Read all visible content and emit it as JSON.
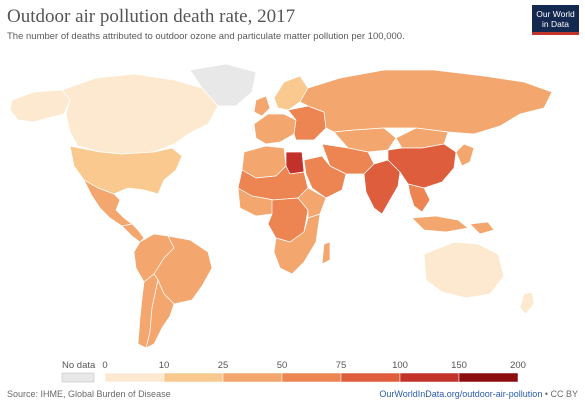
{
  "header": {
    "title": "Outdoor air pollution death rate, 2017",
    "subtitle": "The number of deaths attributed to outdoor ozone and particulate matter pollution per 100,000."
  },
  "logo": {
    "line1": "Our World",
    "line2": "in Data",
    "bg_color": "#14294f",
    "accent_color": "#c0342c"
  },
  "legend": {
    "no_data_label": "No data",
    "no_data_color": "#e8e8e8",
    "ticks": [
      "0",
      "10",
      "25",
      "50",
      "75",
      "100",
      "150",
      "200"
    ],
    "bins": [
      {
        "from": 0,
        "to": 10,
        "color": "#fde9cf"
      },
      {
        "from": 10,
        "to": 25,
        "color": "#f9c98f"
      },
      {
        "from": 25,
        "to": 50,
        "color": "#f3a66d"
      },
      {
        "from": 50,
        "to": 75,
        "color": "#ec8552"
      },
      {
        "from": 75,
        "to": 100,
        "color": "#de5d3c"
      },
      {
        "from": 100,
        "to": 150,
        "color": "#c3322a"
      },
      {
        "from": 150,
        "to": 200,
        "color": "#8c0d0d"
      }
    ]
  },
  "map": {
    "ocean_color": "#ffffff",
    "border_color": "#ffffff",
    "region_values": {
      "canada": 7,
      "alaska": 7,
      "usa": 20,
      "greenland": null,
      "mexico": 27,
      "central_america": 28,
      "brazil": 32,
      "andes_north": 35,
      "south_cone": 28,
      "argentina": 30,
      "uk_ireland": 27,
      "scandinavia": 15,
      "western_europe": 30,
      "eastern_europe": 60,
      "russia": 45,
      "north_africa_west": 45,
      "egypt": 130,
      "sahel": 55,
      "west_africa": 45,
      "central_africa": 60,
      "horn_africa": 30,
      "southern_africa": 38,
      "madagascar": 25,
      "arabia": 70,
      "iran_central_asia": 65,
      "kazakhstan": 45,
      "india": 85,
      "china": 75,
      "mongolia": 35,
      "southeast_asia": 55,
      "indonesia": 40,
      "japan_korea": 45,
      "australia": 8,
      "new_zealand": 5,
      "png": 25
    }
  },
  "footer": {
    "source": "Source: IHME, Global Burden of Disease",
    "link": "OurWorldInData.org/outdoor-air-pollution",
    "license": " • CC BY"
  }
}
